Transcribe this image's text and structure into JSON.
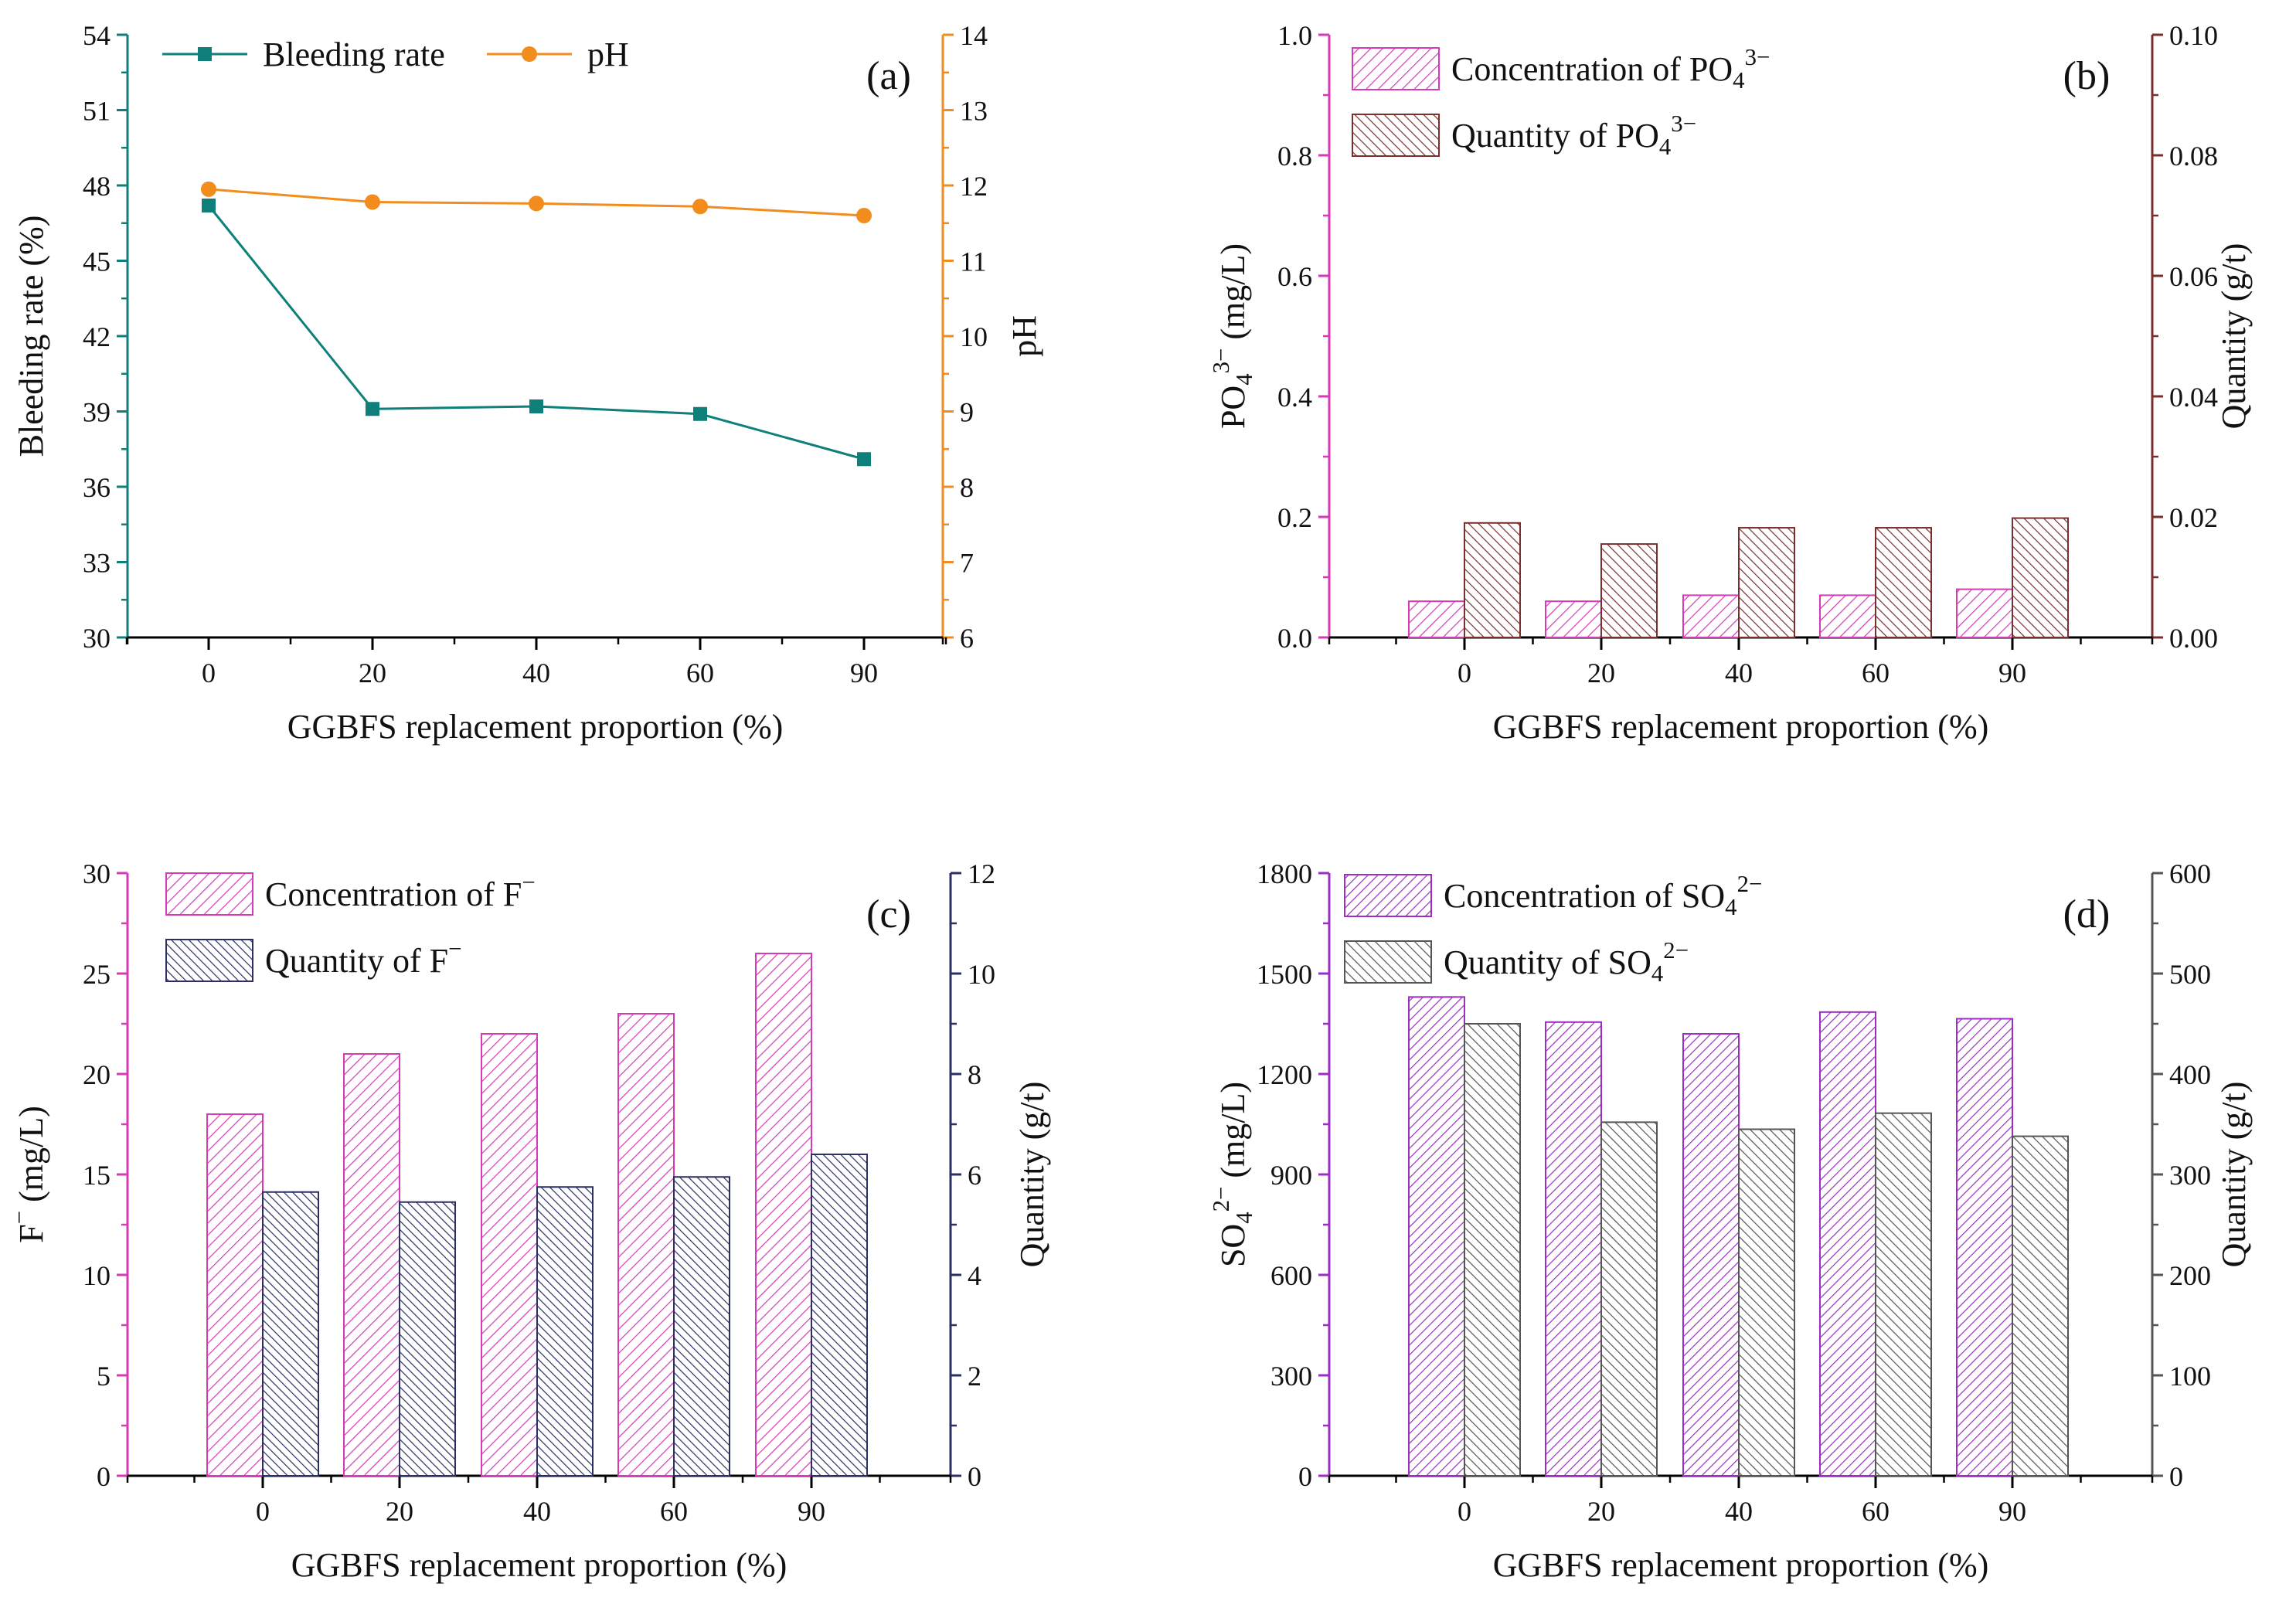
{
  "figure": {
    "colors": {
      "bleeding": "#0f7f7a",
      "ph": "#f28c1c",
      "magenta": "#d63ab5",
      "magenta_fill": "#f6d4f0",
      "brown": "#7a2f2f",
      "brown_fill": "#ddc6c6",
      "navy": "#2c2f63",
      "navy_fill": "#c9cbe0",
      "purple": "#9a2fc2",
      "purple_fill": "#e6cdf0",
      "gray": "#555555",
      "gray_fill": "#d6d6d6",
      "axis": "#000000"
    }
  },
  "chart_data": [
    {
      "id": "a",
      "type": "line",
      "panel_label": "(a)",
      "categories": [
        "0",
        "20",
        "40",
        "60",
        "90"
      ],
      "xlabel": "GGBFS replacement proportion (%)",
      "ylabel": "Bleeding rate (%)",
      "ylabel_right": "pH",
      "ylim": [
        30,
        54
      ],
      "yticks": [
        "30",
        "33",
        "36",
        "39",
        "42",
        "45",
        "48",
        "51",
        "54"
      ],
      "ylim_right": [
        6,
        14
      ],
      "yticks_right": [
        "6",
        "7",
        "8",
        "9",
        "10",
        "11",
        "12",
        "13",
        "14"
      ],
      "series": [
        {
          "name": "Bleeding rate",
          "axis": "left",
          "marker": "square",
          "values": [
            47.2,
            39.1,
            39.2,
            38.9,
            37.1
          ]
        },
        {
          "name": "pH",
          "axis": "right",
          "marker": "circle",
          "values": [
            11.95,
            11.78,
            11.76,
            11.72,
            11.6
          ]
        }
      ],
      "legend_position": "top-left"
    },
    {
      "id": "b",
      "type": "bar",
      "panel_label": "(b)",
      "categories": [
        "0",
        "20",
        "40",
        "60",
        "90"
      ],
      "xlabel": "GGBFS replacement proportion (%)",
      "ylabel": {
        "base": "PO",
        "sub": "4",
        "sup": "3−",
        "rest": " (mg/L)"
      },
      "ylabel_right": "Quantity (g/t)",
      "ylim": [
        0,
        1.0
      ],
      "yticks": [
        "0.0",
        "0.2",
        "0.4",
        "0.6",
        "0.8",
        "1.0"
      ],
      "ylim_right": [
        0,
        0.1
      ],
      "yticks_right": [
        "0.00",
        "0.02",
        "0.04",
        "0.06",
        "0.08",
        "0.10"
      ],
      "series": [
        {
          "name": {
            "base": "Concentration of PO",
            "sub": "4",
            "sup": "3−"
          },
          "axis": "left",
          "values": [
            0.06,
            0.06,
            0.07,
            0.07,
            0.08
          ]
        },
        {
          "name": {
            "base": "Quantity of PO",
            "sub": "4",
            "sup": "3−"
          },
          "axis": "right",
          "values": [
            0.019,
            0.0155,
            0.0182,
            0.0182,
            0.0198
          ]
        }
      ],
      "legend_position": "top-left"
    },
    {
      "id": "c",
      "type": "bar",
      "panel_label": "(c)",
      "categories": [
        "0",
        "20",
        "40",
        "60",
        "90"
      ],
      "xlabel": "GGBFS replacement proportion (%)",
      "ylabel": {
        "base": "F",
        "sub": "",
        "sup": "−",
        "rest": " (mg/L)"
      },
      "ylabel_right": "Quantity (g/t)",
      "ylim": [
        0,
        30
      ],
      "yticks": [
        "0",
        "5",
        "10",
        "15",
        "20",
        "25",
        "30"
      ],
      "ylim_right": [
        0,
        12
      ],
      "yticks_right": [
        "0",
        "2",
        "4",
        "6",
        "8",
        "10",
        "12"
      ],
      "series": [
        {
          "name": {
            "base": "Concentration of F",
            "sub": "",
            "sup": "−"
          },
          "axis": "left",
          "values": [
            18,
            21,
            22,
            23,
            26
          ]
        },
        {
          "name": {
            "base": "Quantity of F",
            "sub": "",
            "sup": "−"
          },
          "axis": "right",
          "values": [
            5.65,
            5.45,
            5.75,
            5.95,
            6.4
          ]
        }
      ],
      "legend_position": "top-left"
    },
    {
      "id": "d",
      "type": "bar",
      "panel_label": "(d)",
      "categories": [
        "0",
        "20",
        "40",
        "60",
        "90"
      ],
      "xlabel": "GGBFS replacement proportion (%)",
      "ylabel": {
        "base": "SO",
        "sub": "4",
        "sup": "2−",
        "rest": " (mg/L)"
      },
      "ylabel_right": "Quantity (g/t)",
      "ylim": [
        0,
        1800
      ],
      "yticks": [
        "0",
        "300",
        "600",
        "900",
        "1200",
        "1500",
        "1800"
      ],
      "ylim_right": [
        0,
        600
      ],
      "yticks_right": [
        "0",
        "100",
        "200",
        "300",
        "400",
        "500",
        "600"
      ],
      "series": [
        {
          "name": {
            "base": "Concentration of SO",
            "sub": "4",
            "sup": "2−"
          },
          "axis": "left",
          "values": [
            1430,
            1355,
            1320,
            1385,
            1365
          ]
        },
        {
          "name": {
            "base": "Quantity of SO",
            "sub": "4",
            "sup": "2−"
          },
          "axis": "right",
          "values": [
            450,
            352,
            345,
            361,
            338
          ]
        }
      ],
      "legend_position": "top-left"
    }
  ]
}
